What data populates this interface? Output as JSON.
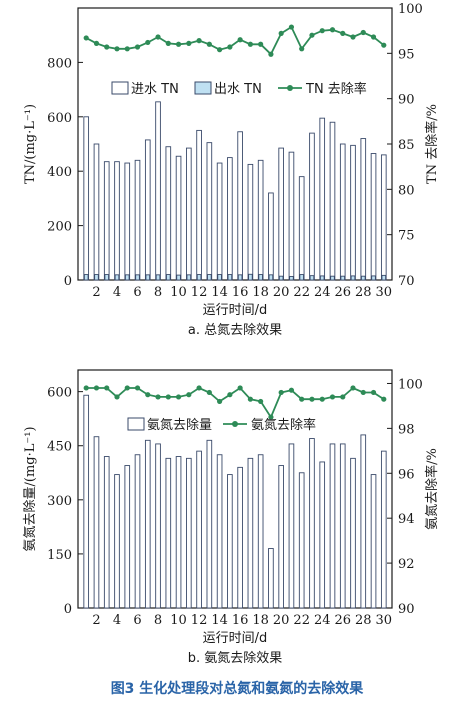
{
  "figure_caption": "图3  生化处理段对总氮和氨氮的去除效果",
  "chart_data": [
    {
      "type": "bar",
      "subtitle": "a. 总氮去除效果",
      "xlabel": "运行时间/d",
      "ylabel": "TN/(mg·L⁻¹)",
      "y2label": "TN 去除率/%",
      "x": [
        1,
        2,
        3,
        4,
        5,
        6,
        7,
        8,
        9,
        10,
        11,
        12,
        13,
        14,
        15,
        16,
        17,
        18,
        19,
        20,
        21,
        22,
        23,
        24,
        25,
        26,
        27,
        28,
        29,
        30
      ],
      "xticks": [
        "2",
        "4",
        "6",
        "8",
        "10",
        "12",
        "14",
        "16",
        "18",
        "20",
        "22",
        "24",
        "26",
        "28",
        "30"
      ],
      "ylim": [
        0,
        1000
      ],
      "yticks": [
        "0",
        "200",
        "400",
        "600",
        "800"
      ],
      "y2lim": [
        70,
        100
      ],
      "y2ticks": [
        "70",
        "75",
        "80",
        "85",
        "90",
        "95",
        "100"
      ],
      "legend": {
        "placement": "top",
        "influent": "进水 TN",
        "effluent": "出水 TN",
        "rate": "TN 去除率"
      },
      "series": [
        {
          "name": "进水 TN",
          "kind": "bar",
          "color": "#ffffff",
          "values": [
            600,
            500,
            435,
            435,
            430,
            440,
            515,
            655,
            490,
            455,
            485,
            550,
            505,
            430,
            450,
            545,
            425,
            440,
            320,
            485,
            470,
            380,
            540,
            595,
            580,
            500,
            495,
            520,
            465,
            460
          ]
        },
        {
          "name": "出水 TN",
          "kind": "bar",
          "color": "#bfe0f2",
          "values": [
            20,
            20,
            20,
            19,
            19,
            19,
            19,
            19,
            20,
            18,
            19,
            20,
            20,
            20,
            20,
            19,
            21,
            20,
            19,
            14,
            13,
            20,
            16,
            15,
            14,
            14,
            15,
            14,
            15,
            17
          ]
        },
        {
          "name": "TN 去除率",
          "kind": "line",
          "axis": "right",
          "color": "#2e8b57",
          "values": [
            96.7,
            96.1,
            95.7,
            95.5,
            95.5,
            95.7,
            96.2,
            96.8,
            96.1,
            96.0,
            96.1,
            96.4,
            96.0,
            95.4,
            95.7,
            96.5,
            96.0,
            96.0,
            94.9,
            97.2,
            97.9,
            95.5,
            97.0,
            97.5,
            97.6,
            97.2,
            96.8,
            97.3,
            96.8,
            95.9
          ]
        }
      ]
    },
    {
      "type": "bar",
      "subtitle": "b. 氨氮去除效果",
      "xlabel": "运行时间/d",
      "ylabel": "氨氮去除量/(mg·L⁻¹)",
      "y2label": "氨氮去除率/%",
      "x": [
        1,
        2,
        3,
        4,
        5,
        6,
        7,
        8,
        9,
        10,
        11,
        12,
        13,
        14,
        15,
        16,
        17,
        18,
        19,
        20,
        21,
        22,
        23,
        24,
        25,
        26,
        27,
        28,
        29,
        30
      ],
      "xticks": [
        "2",
        "4",
        "6",
        "8",
        "10",
        "12",
        "14",
        "16",
        "18",
        "20",
        "22",
        "24",
        "26",
        "28",
        "30"
      ],
      "ylim": [
        0,
        660
      ],
      "yticks": [
        "0",
        "150",
        "300",
        "450",
        "600"
      ],
      "y2lim": [
        90,
        100.6
      ],
      "y2ticks": [
        "90",
        "92",
        "94",
        "96",
        "98",
        "100"
      ],
      "legend": {
        "placement": "top",
        "removal": "氨氮去除量",
        "rate": "氨氮去除率"
      },
      "series": [
        {
          "name": "氨氮去除量",
          "kind": "bar",
          "color": "#ffffff",
          "values": [
            590,
            475,
            420,
            370,
            395,
            425,
            465,
            455,
            415,
            420,
            415,
            435,
            465,
            425,
            370,
            390,
            415,
            425,
            165,
            395,
            455,
            375,
            470,
            405,
            455,
            455,
            415,
            480,
            370,
            435
          ]
        },
        {
          "name": "氨氮去除率",
          "kind": "line",
          "axis": "right",
          "color": "#2e8b57",
          "values": [
            99.8,
            99.8,
            99.8,
            99.4,
            99.8,
            99.8,
            99.5,
            99.4,
            99.4,
            99.4,
            99.5,
            99.8,
            99.6,
            99.2,
            99.5,
            99.8,
            99.3,
            99.2,
            98.5,
            99.6,
            99.7,
            99.3,
            99.3,
            99.3,
            99.4,
            99.4,
            99.8,
            99.6,
            99.6,
            99.3
          ]
        }
      ]
    }
  ]
}
